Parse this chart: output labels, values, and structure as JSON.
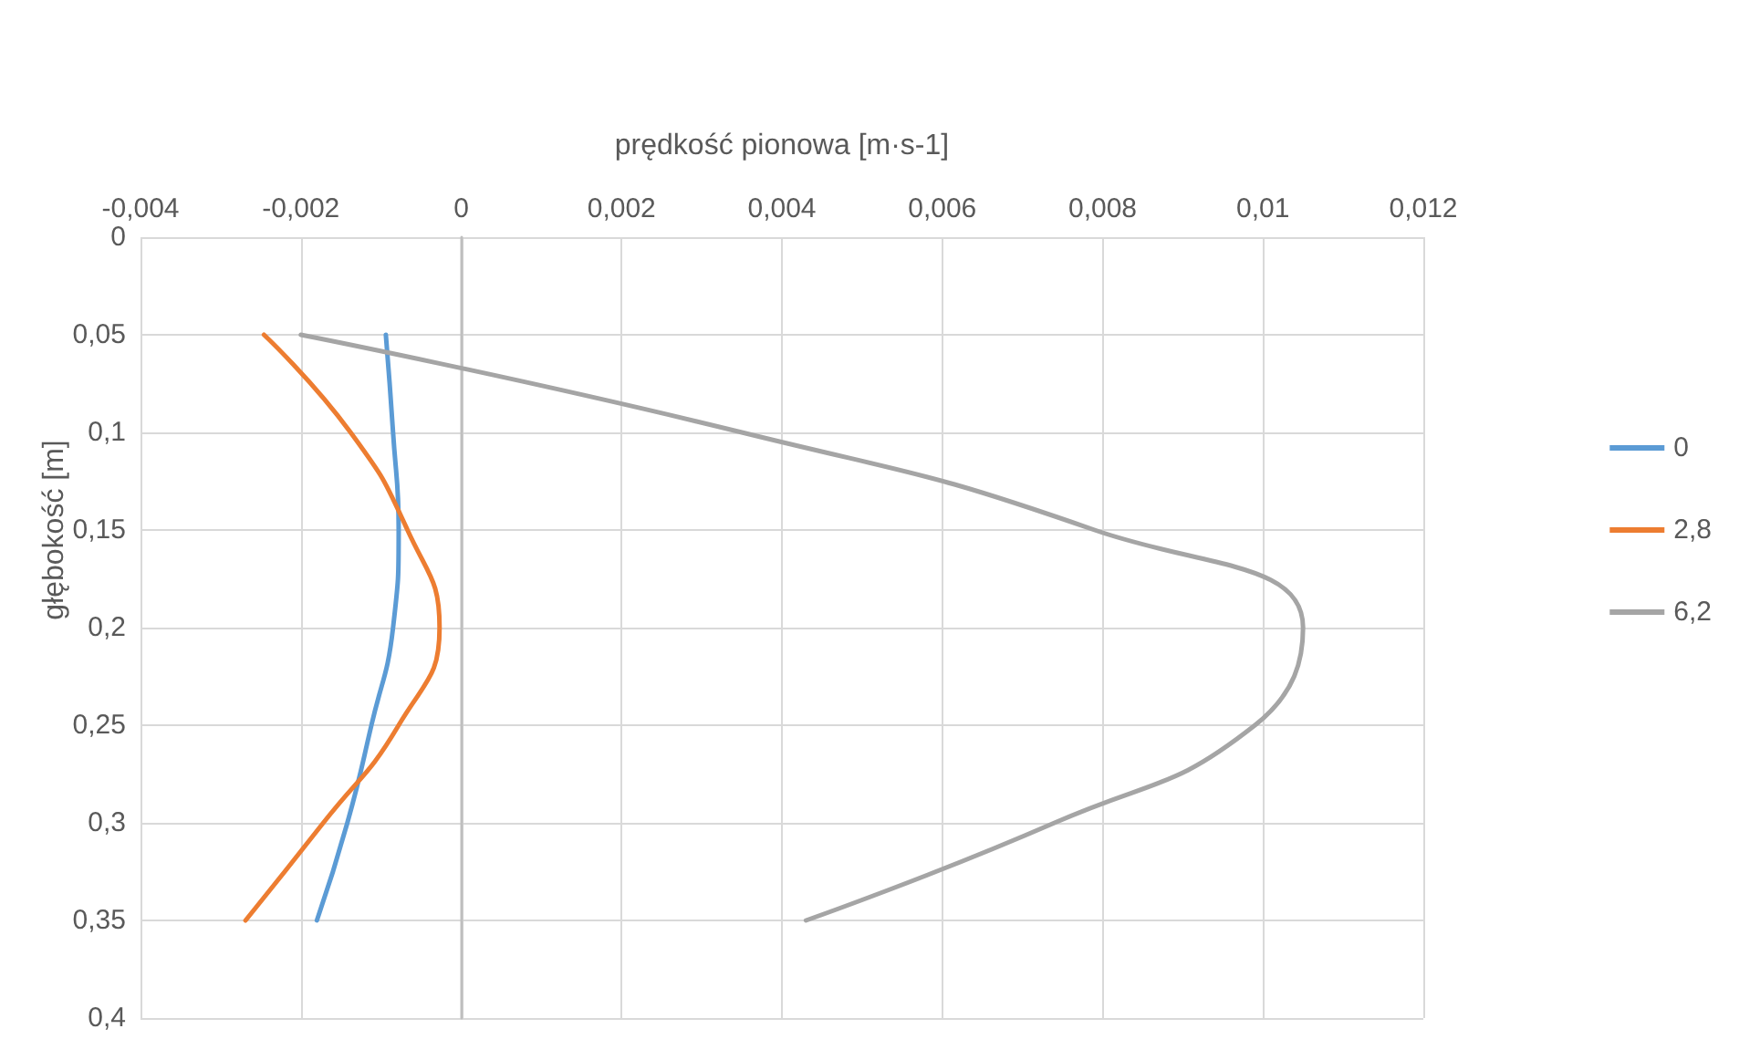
{
  "chart_data": {
    "type": "line",
    "xlabel": "prędkość pionowa [m·s-1]",
    "ylabel": "głębokość [m]",
    "xlim": [
      -0.004,
      0.012
    ],
    "ylim": [
      0.4,
      0
    ],
    "xticks": [
      {
        "value": -0.004,
        "label": "-0,004"
      },
      {
        "value": -0.002,
        "label": "-0,002"
      },
      0,
      {
        "value": 0.002,
        "label": "0,002"
      },
      {
        "value": 0.004,
        "label": "0,004"
      },
      {
        "value": 0.006,
        "label": "0,006"
      },
      {
        "value": 0.008,
        "label": "0,008"
      },
      {
        "value": 0.01,
        "label": "0,01"
      },
      {
        "value": 0.012,
        "label": "0,012"
      }
    ],
    "yticks": [
      0,
      {
        "value": 0.05,
        "label": "0,05"
      },
      {
        "value": 0.1,
        "label": "0,1"
      },
      {
        "value": 0.15,
        "label": "0,15"
      },
      {
        "value": 0.2,
        "label": "0,2"
      },
      {
        "value": 0.25,
        "label": "0,25"
      },
      {
        "value": 0.3,
        "label": "0,3"
      },
      {
        "value": 0.35,
        "label": "0,35"
      },
      {
        "value": 0.4,
        "label": "0,4"
      }
    ],
    "grid": true,
    "legend": "right",
    "marker": "none",
    "line_style": "solid",
    "series": [
      {
        "name": "0",
        "color": "#5b9bd5",
        "x": [
          -0.00094,
          -0.00085,
          -0.00078,
          -0.00085,
          -0.00112,
          -0.00142,
          -0.0018
        ],
        "values": [
          0.05,
          0.1,
          0.15,
          0.2,
          0.25,
          0.3,
          0.35
        ]
      },
      {
        "name": "2,8",
        "color": "#ed7d31",
        "x": [
          -0.00246,
          -0.00138,
          -0.00067,
          -0.00027,
          -0.00078,
          -0.00172,
          -0.00269
        ],
        "values": [
          0.05,
          0.1,
          0.15,
          0.2,
          0.25,
          0.3,
          0.35
        ]
      },
      {
        "name": "6,2",
        "color": "#a5a5a5",
        "x": [
          -0.002,
          0.0035,
          0.0079,
          0.0105,
          0.0099,
          0.0074,
          0.0043
        ],
        "values": [
          0.05,
          0.1,
          0.15,
          0.2,
          0.25,
          0.3,
          0.35
        ]
      }
    ]
  }
}
